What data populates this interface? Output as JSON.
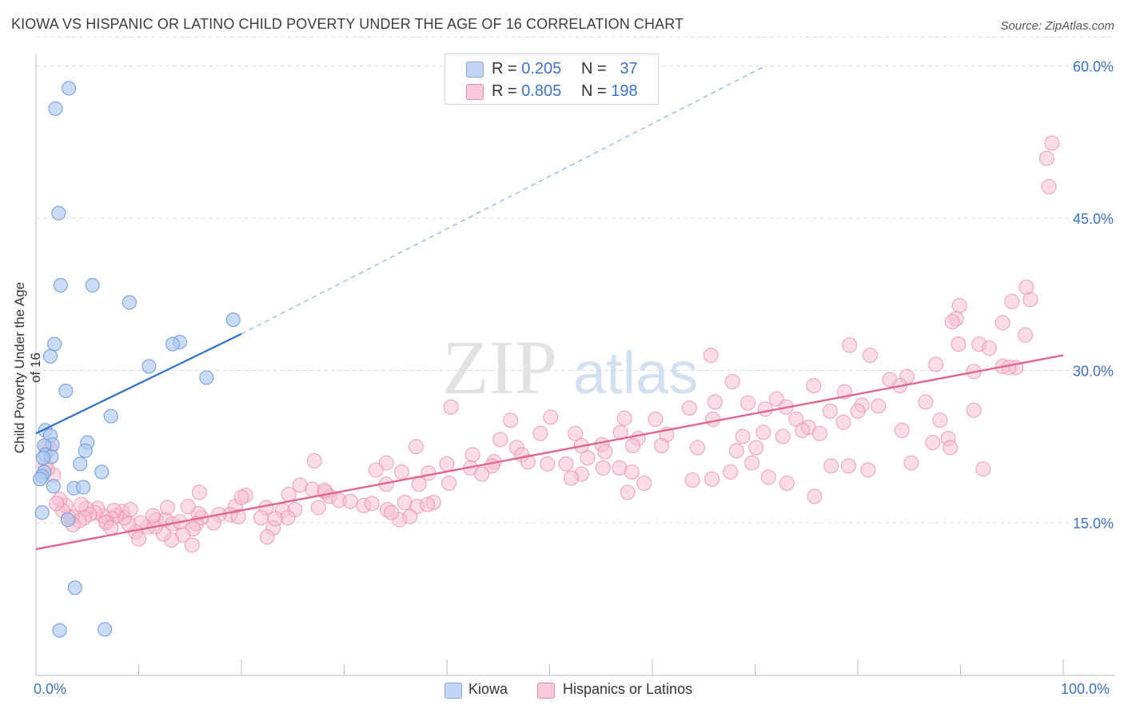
{
  "title": "KIOWA VS HISPANIC OR LATINO CHILD POVERTY UNDER THE AGE OF 16 CORRELATION CHART",
  "source": "Source: ZipAtlas.com",
  "watermark": {
    "zip": "ZIP",
    "atlas": "atlas"
  },
  "legend": {
    "r_label": "R =",
    "n_label": "N =",
    "kiowa": {
      "r": "0.205",
      "n": "37"
    },
    "hispanic": {
      "r": "0.805",
      "n": "198"
    }
  },
  "colors": {
    "kiowa_fill": "#aec9f0",
    "kiowa_stroke": "#6f9ad8",
    "kiowa_line": "#2d6fcc",
    "hispanic_fill": "#f6bfd0",
    "hispanic_stroke": "#e98aa9",
    "hispanic_line": "#e0668f",
    "tick_label": "#3f72c4",
    "grid": "#dcdcdc"
  },
  "chart_data": {
    "type": "scatter",
    "title": "KIOWA VS HISPANIC OR LATINO CHILD POVERTY UNDER THE AGE OF 16 CORRELATION CHART",
    "xlabel": "",
    "ylabel": "Child Poverty Under the Age of 16",
    "xlim": [
      0,
      100
    ],
    "ylim": [
      0,
      63
    ],
    "x_tick_labels": [
      "0.0%",
      "100.0%"
    ],
    "y_ticks": [
      15,
      30,
      45,
      60
    ],
    "y_tick_labels": [
      "15.0%",
      "30.0%",
      "45.0%",
      "60.0%"
    ],
    "grid": true,
    "legend_position": "top-center",
    "series": [
      {
        "name": "Kiowa",
        "r": 0.205,
        "n": 37,
        "trend": {
          "x": [
            0,
            20
          ],
          "y": [
            23.8,
            33.6
          ],
          "extrapolated_to": [
            71,
            60
          ]
        },
        "points": [
          [
            3.2,
            57.8
          ],
          [
            1.9,
            55.8
          ],
          [
            2.2,
            45.5
          ],
          [
            2.4,
            38.4
          ],
          [
            5.5,
            38.4
          ],
          [
            9.1,
            36.7
          ],
          [
            19.2,
            35.0
          ],
          [
            14.0,
            32.8
          ],
          [
            13.3,
            32.6
          ],
          [
            1.8,
            32.6
          ],
          [
            1.4,
            31.4
          ],
          [
            11.0,
            30.4
          ],
          [
            16.6,
            29.3
          ],
          [
            2.9,
            28.0
          ],
          [
            7.3,
            25.5
          ],
          [
            0.9,
            24.1
          ],
          [
            1.4,
            23.6
          ],
          [
            1.6,
            22.7
          ],
          [
            5.0,
            22.9
          ],
          [
            0.8,
            22.6
          ],
          [
            4.8,
            22.1
          ],
          [
            0.9,
            21.7
          ],
          [
            1.5,
            21.5
          ],
          [
            0.7,
            21.4
          ],
          [
            4.3,
            20.8
          ],
          [
            6.4,
            20.0
          ],
          [
            0.8,
            20.0
          ],
          [
            0.6,
            19.6
          ],
          [
            0.4,
            19.3
          ],
          [
            1.7,
            18.6
          ],
          [
            3.7,
            18.4
          ],
          [
            4.6,
            18.5
          ],
          [
            0.6,
            16.0
          ],
          [
            3.1,
            15.3
          ],
          [
            3.8,
            8.6
          ],
          [
            2.3,
            4.4
          ],
          [
            6.7,
            4.5
          ]
        ]
      },
      {
        "name": "Hispanics or Latinos",
        "r": 0.805,
        "n": 198,
        "trend": {
          "x": [
            0,
            100
          ],
          "y": [
            12.4,
            31.5
          ]
        },
        "points": [
          [
            98.9,
            52.4
          ],
          [
            98.4,
            50.9
          ],
          [
            98.6,
            48.1
          ],
          [
            96.4,
            38.2
          ],
          [
            96.8,
            37.0
          ],
          [
            95.0,
            36.8
          ],
          [
            89.9,
            36.4
          ],
          [
            89.6,
            35.1
          ],
          [
            89.2,
            34.8
          ],
          [
            94.1,
            34.7
          ],
          [
            96.3,
            33.5
          ],
          [
            91.8,
            32.6
          ],
          [
            89.8,
            32.6
          ],
          [
            92.8,
            32.2
          ],
          [
            79.2,
            32.5
          ],
          [
            81.2,
            31.5
          ],
          [
            95.4,
            30.3
          ],
          [
            94.1,
            30.4
          ],
          [
            87.6,
            30.6
          ],
          [
            94.7,
            30.3
          ],
          [
            91.3,
            29.9
          ],
          [
            65.7,
            31.5
          ],
          [
            84.8,
            29.4
          ],
          [
            83.1,
            29.1
          ],
          [
            75.7,
            28.5
          ],
          [
            78.7,
            27.9
          ],
          [
            67.8,
            28.9
          ],
          [
            84.1,
            28.5
          ],
          [
            72.1,
            27.2
          ],
          [
            69.3,
            26.8
          ],
          [
            82.0,
            26.5
          ],
          [
            80.4,
            26.6
          ],
          [
            86.6,
            26.9
          ],
          [
            66.1,
            26.9
          ],
          [
            73.0,
            26.4
          ],
          [
            77.3,
            26.0
          ],
          [
            80.0,
            26.0
          ],
          [
            71.0,
            26.2
          ],
          [
            74.0,
            25.2
          ],
          [
            63.6,
            26.3
          ],
          [
            60.3,
            25.2
          ],
          [
            88.0,
            25.1
          ],
          [
            65.9,
            25.2
          ],
          [
            91.3,
            26.1
          ],
          [
            57.3,
            25.3
          ],
          [
            78.6,
            24.9
          ],
          [
            75.2,
            24.4
          ],
          [
            74.6,
            24.1
          ],
          [
            72.7,
            23.5
          ],
          [
            70.8,
            23.9
          ],
          [
            61.4,
            23.7
          ],
          [
            68.8,
            23.5
          ],
          [
            58.6,
            23.3
          ],
          [
            84.3,
            24.1
          ],
          [
            76.3,
            23.8
          ],
          [
            88.8,
            23.3
          ],
          [
            87.3,
            22.9
          ],
          [
            89.0,
            22.4
          ],
          [
            64.4,
            22.4
          ],
          [
            60.9,
            22.6
          ],
          [
            70.1,
            22.4
          ],
          [
            68.2,
            22.1
          ],
          [
            55.1,
            22.7
          ],
          [
            58.1,
            22.6
          ],
          [
            69.7,
            20.9
          ],
          [
            77.4,
            20.6
          ],
          [
            85.2,
            20.9
          ],
          [
            79.1,
            20.6
          ],
          [
            92.2,
            20.3
          ],
          [
            81.0,
            20.2
          ],
          [
            67.6,
            20.0
          ],
          [
            71.3,
            19.5
          ],
          [
            63.9,
            19.2
          ],
          [
            65.8,
            19.3
          ],
          [
            73.1,
            18.9
          ],
          [
            75.8,
            17.6
          ],
          [
            50.1,
            25.4
          ],
          [
            46.2,
            25.1
          ],
          [
            40.4,
            26.4
          ],
          [
            56.9,
            23.9
          ],
          [
            52.5,
            23.8
          ],
          [
            49.1,
            23.8
          ],
          [
            53.1,
            22.6
          ],
          [
            45.2,
            23.2
          ],
          [
            46.8,
            22.4
          ],
          [
            55.4,
            22.0
          ],
          [
            53.7,
            21.4
          ],
          [
            47.3,
            21.7
          ],
          [
            42.5,
            21.7
          ],
          [
            44.6,
            21.0
          ],
          [
            47.9,
            21.0
          ],
          [
            55.2,
            20.4
          ],
          [
            53.1,
            19.8
          ],
          [
            56.8,
            20.4
          ],
          [
            58.0,
            20.0
          ],
          [
            52.1,
            19.4
          ],
          [
            59.2,
            18.9
          ],
          [
            57.6,
            18.0
          ],
          [
            49.8,
            20.8
          ],
          [
            51.6,
            20.8
          ],
          [
            37.0,
            22.5
          ],
          [
            34.1,
            20.9
          ],
          [
            40.0,
            20.8
          ],
          [
            44.4,
            20.6
          ],
          [
            42.3,
            20.4
          ],
          [
            35.6,
            20.0
          ],
          [
            38.2,
            19.9
          ],
          [
            43.4,
            19.8
          ],
          [
            40.2,
            18.9
          ],
          [
            34.1,
            18.8
          ],
          [
            37.3,
            18.8
          ],
          [
            38.7,
            17.0
          ],
          [
            35.4,
            15.3
          ],
          [
            33.1,
            20.2
          ],
          [
            27.1,
            21.1
          ],
          [
            25.7,
            18.7
          ],
          [
            26.9,
            18.3
          ],
          [
            28.2,
            18.0
          ],
          [
            28.6,
            17.6
          ],
          [
            24.6,
            17.8
          ],
          [
            29.5,
            17.2
          ],
          [
            30.6,
            17.1
          ],
          [
            31.9,
            16.7
          ],
          [
            32.7,
            16.9
          ],
          [
            34.2,
            16.3
          ],
          [
            35.9,
            17.0
          ],
          [
            37.1,
            16.6
          ],
          [
            38.1,
            16.8
          ],
          [
            36.4,
            15.6
          ],
          [
            34.6,
            16.0
          ],
          [
            27.5,
            16.5
          ],
          [
            25.2,
            16.3
          ],
          [
            24.0,
            16.2
          ],
          [
            22.4,
            16.5
          ],
          [
            20.4,
            17.7
          ],
          [
            19.4,
            16.6
          ],
          [
            18.9,
            15.8
          ],
          [
            19.7,
            15.6
          ],
          [
            21.9,
            15.5
          ],
          [
            23.1,
            14.5
          ],
          [
            22.5,
            13.6
          ],
          [
            24.5,
            15.5
          ],
          [
            17.8,
            15.8
          ],
          [
            17.3,
            15.0
          ],
          [
            16.1,
            15.5
          ],
          [
            15.8,
            15.9
          ],
          [
            14.8,
            16.6
          ],
          [
            15.6,
            14.9
          ],
          [
            15.3,
            14.4
          ],
          [
            14.3,
            13.8
          ],
          [
            13.2,
            13.3
          ],
          [
            12.4,
            13.9
          ],
          [
            11.6,
            14.6
          ],
          [
            10.9,
            14.6
          ],
          [
            11.7,
            15.3
          ],
          [
            12.6,
            15.3
          ],
          [
            13.3,
            14.9
          ],
          [
            14.0,
            15.1
          ],
          [
            15.9,
            18.0
          ],
          [
            12.8,
            16.5
          ],
          [
            11.4,
            15.7
          ],
          [
            10.2,
            15.0
          ],
          [
            9.7,
            14.1
          ],
          [
            9.0,
            14.9
          ],
          [
            8.6,
            15.5
          ],
          [
            8.4,
            16.1
          ],
          [
            7.8,
            15.7
          ],
          [
            7.6,
            16.2
          ],
          [
            7.4,
            15.4
          ],
          [
            6.9,
            15.1
          ],
          [
            6.5,
            15.7
          ],
          [
            6.0,
            16.4
          ],
          [
            5.7,
            16.0
          ],
          [
            5.2,
            15.8
          ],
          [
            4.9,
            16.4
          ],
          [
            4.7,
            15.5
          ],
          [
            4.2,
            15.2
          ],
          [
            3.5,
            15.6
          ],
          [
            3.2,
            15.5
          ],
          [
            2.9,
            16.7
          ],
          [
            2.6,
            16.2
          ],
          [
            2.3,
            17.3
          ],
          [
            2.0,
            16.9
          ],
          [
            3.6,
            14.8
          ],
          [
            6.8,
            15.0
          ],
          [
            7.3,
            14.5
          ],
          [
            1.7,
            19.7
          ],
          [
            1.1,
            20.3
          ],
          [
            0.9,
            20.6
          ],
          [
            1.0,
            22.4
          ],
          [
            1.4,
            22.3
          ],
          [
            4.4,
            16.8
          ],
          [
            9.2,
            16.3
          ],
          [
            10.0,
            13.4
          ],
          [
            15.2,
            12.8
          ],
          [
            20.0,
            17.5
          ],
          [
            28.1,
            18.2
          ],
          [
            23.3,
            15.4
          ]
        ]
      }
    ]
  },
  "bottom_legend": {
    "kiowa": "Kiowa",
    "hispanic": "Hispanics or Latinos"
  }
}
